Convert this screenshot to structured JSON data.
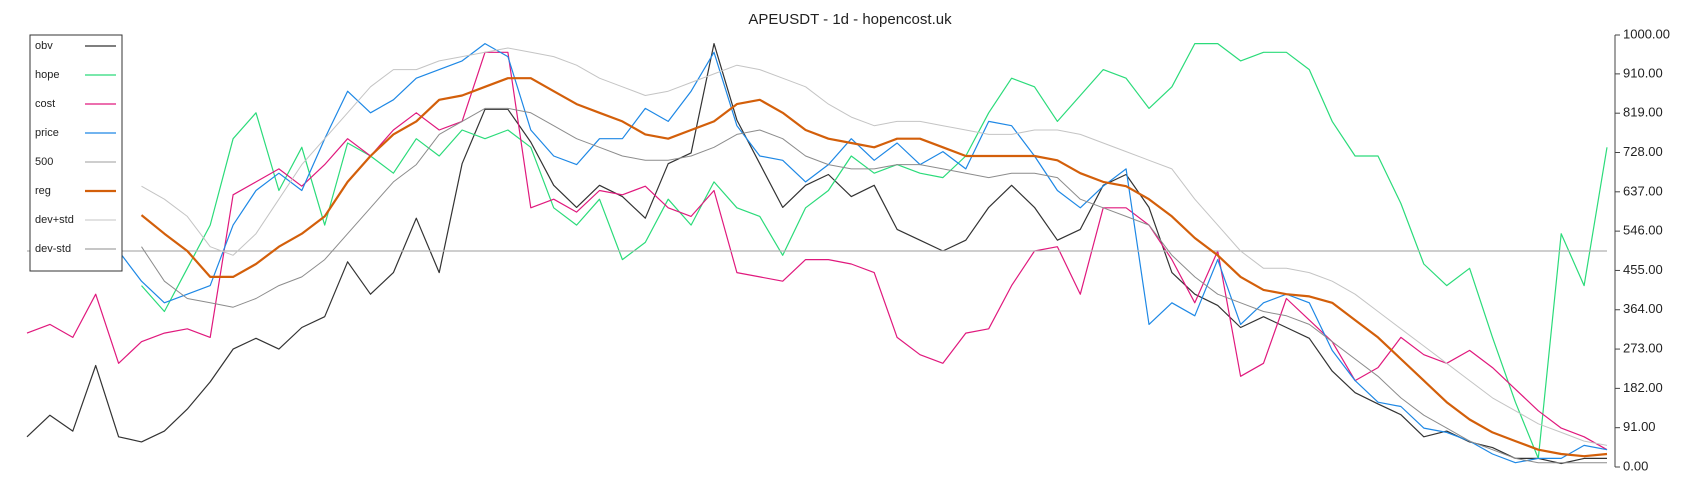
{
  "chart_data": {
    "type": "line",
    "title": "APEUSDT - 1d - hopencost.uk",
    "categories": [
      null,
      null,
      null,
      null,
      null,
      null,
      null,
      null,
      null,
      null,
      null,
      null,
      null,
      null,
      null,
      null,
      null,
      null,
      null,
      null,
      null,
      null,
      null,
      null,
      null,
      null,
      null,
      null,
      null,
      null,
      null,
      null,
      null,
      null,
      null,
      null,
      null,
      null,
      null,
      null,
      null,
      null,
      null,
      null,
      null,
      null,
      null,
      null,
      null,
      null,
      null,
      null,
      null,
      null,
      null,
      null,
      null,
      null,
      null,
      null,
      null,
      null,
      null,
      null,
      null,
      null,
      null,
      null,
      null,
      null
    ],
    "ylim": [
      0,
      1000
    ],
    "yticks": [
      {
        "value": 0,
        "label": "0.00"
      },
      {
        "value": 91,
        "label": "91.00"
      },
      {
        "value": 182,
        "label": "182.00"
      },
      {
        "value": 273,
        "label": "273.00"
      },
      {
        "value": 364,
        "label": "364.00"
      },
      {
        "value": 455,
        "label": "455.00"
      },
      {
        "value": 546,
        "label": "546.00"
      },
      {
        "value": 637,
        "label": "637.00"
      },
      {
        "value": 728,
        "label": "728.00"
      },
      {
        "value": 819,
        "label": "819.00"
      },
      {
        "value": 910,
        "label": "910.00"
      },
      {
        "value": 1000,
        "label": "1000.00"
      }
    ],
    "legend": "upper left",
    "series": [
      {
        "name": "obv",
        "color": "#333333",
        "width": 1.2,
        "values": [
          70,
          120,
          83,
          235,
          70,
          58,
          83,
          134,
          197,
          273,
          298,
          273,
          323,
          348,
          475,
          400,
          450,
          576,
          450,
          702,
          828,
          828,
          752,
          652,
          601,
          652,
          626,
          576,
          702,
          727,
          980,
          803,
          702,
          601,
          652,
          677,
          626,
          652,
          550,
          525,
          500,
          525,
          601,
          652,
          601,
          525,
          550,
          652,
          677,
          601,
          450,
          400,
          374,
          323,
          348,
          323,
          298,
          222,
          172,
          146,
          121,
          70,
          83,
          58,
          45,
          20,
          20,
          8,
          20,
          20
        ]
      },
      {
        "name": "hope",
        "color": "#2bdb7a",
        "width": 1.2,
        "values": [
          null,
          null,
          null,
          null,
          null,
          420,
          360,
          460,
          560,
          760,
          820,
          640,
          740,
          560,
          750,
          720,
          680,
          760,
          720,
          780,
          760,
          780,
          740,
          600,
          560,
          620,
          480,
          520,
          620,
          560,
          660,
          600,
          580,
          490,
          600,
          640,
          720,
          680,
          700,
          680,
          670,
          720,
          820,
          900,
          880,
          800,
          860,
          920,
          900,
          830,
          880,
          980,
          980,
          940,
          960,
          960,
          920,
          800,
          720,
          720,
          610,
          470,
          420,
          460,
          300,
          150,
          20,
          540,
          420,
          740
        ]
      },
      {
        "name": "cost",
        "color": "#e0197d",
        "width": 1.2,
        "values": [
          310,
          330,
          300,
          400,
          240,
          290,
          310,
          320,
          300,
          630,
          660,
          690,
          650,
          700,
          760,
          720,
          780,
          820,
          780,
          800,
          960,
          960,
          600,
          620,
          590,
          640,
          630,
          650,
          600,
          580,
          640,
          450,
          440,
          430,
          480,
          480,
          470,
          450,
          300,
          260,
          240,
          310,
          320,
          420,
          500,
          510,
          400,
          600,
          600,
          560,
          480,
          380,
          500,
          210,
          240,
          390,
          340,
          290,
          200,
          230,
          300,
          260,
          240,
          270,
          230,
          180,
          130,
          90,
          70,
          40
        ]
      },
      {
        "name": "price",
        "color": "#1e88e5",
        "width": 1.2,
        "values": [
          null,
          null,
          null,
          null,
          500,
          430,
          380,
          400,
          420,
          560,
          640,
          680,
          640,
          760,
          870,
          820,
          850,
          900,
          920,
          940,
          980,
          950,
          780,
          720,
          700,
          760,
          760,
          830,
          800,
          870,
          960,
          790,
          720,
          710,
          660,
          700,
          760,
          710,
          750,
          700,
          730,
          690,
          800,
          790,
          720,
          640,
          600,
          650,
          690,
          330,
          380,
          350,
          480,
          330,
          380,
          400,
          380,
          270,
          200,
          150,
          140,
          90,
          80,
          60,
          30,
          10,
          20,
          20,
          50,
          40
        ]
      },
      {
        "name": "500",
        "color": "#b0b0b0",
        "width": 1.2,
        "values": [
          500,
          500,
          500,
          500,
          500,
          500,
          500,
          500,
          500,
          500,
          500,
          500,
          500,
          500,
          500,
          500,
          500,
          500,
          500,
          500,
          500,
          500,
          500,
          500,
          500,
          500,
          500,
          500,
          500,
          500,
          500,
          500,
          500,
          500,
          500,
          500,
          500,
          500,
          500,
          500,
          500,
          500,
          500,
          500,
          500,
          500,
          500,
          500,
          500,
          500,
          500,
          500,
          500,
          500,
          500,
          500,
          500,
          500,
          500,
          500,
          500,
          500,
          500,
          500,
          500,
          500,
          500,
          500,
          500,
          500
        ]
      },
      {
        "name": "reg",
        "color": "#d35f0a",
        "width": 2.2,
        "values": [
          null,
          null,
          null,
          null,
          null,
          583,
          540,
          500,
          440,
          440,
          470,
          510,
          540,
          580,
          660,
          720,
          770,
          800,
          850,
          860,
          880,
          900,
          900,
          870,
          840,
          820,
          800,
          770,
          760,
          780,
          800,
          840,
          850,
          820,
          780,
          760,
          750,
          740,
          760,
          760,
          740,
          720,
          720,
          720,
          720,
          710,
          680,
          660,
          650,
          620,
          580,
          530,
          490,
          440,
          410,
          400,
          395,
          380,
          340,
          300,
          250,
          200,
          150,
          110,
          80,
          60,
          40,
          30,
          25,
          30
        ]
      },
      {
        "name": "dev+std",
        "color": "#c4c4c4",
        "width": 1,
        "values": [
          null,
          null,
          null,
          null,
          null,
          650,
          620,
          580,
          510,
          490,
          540,
          620,
          700,
          760,
          820,
          880,
          920,
          920,
          940,
          950,
          960,
          970,
          960,
          950,
          930,
          900,
          880,
          860,
          870,
          890,
          910,
          930,
          920,
          900,
          880,
          840,
          810,
          790,
          800,
          800,
          790,
          780,
          770,
          770,
          780,
          780,
          770,
          750,
          730,
          710,
          690,
          620,
          560,
          500,
          460,
          460,
          450,
          430,
          400,
          360,
          320,
          280,
          240,
          200,
          160,
          130,
          100,
          80,
          60,
          50
        ]
      },
      {
        "name": "dev-std",
        "color": "#8c8c8c",
        "width": 1,
        "values": [
          null,
          null,
          null,
          null,
          null,
          510,
          430,
          390,
          380,
          370,
          390,
          420,
          440,
          480,
          540,
          600,
          660,
          700,
          770,
          800,
          830,
          830,
          820,
          790,
          760,
          740,
          720,
          710,
          710,
          720,
          740,
          770,
          780,
          760,
          720,
          700,
          690,
          690,
          700,
          700,
          690,
          680,
          670,
          680,
          680,
          670,
          620,
          600,
          580,
          560,
          490,
          440,
          400,
          380,
          360,
          350,
          330,
          290,
          250,
          210,
          160,
          120,
          90,
          60,
          40,
          20,
          10,
          10,
          10,
          10
        ]
      }
    ]
  }
}
